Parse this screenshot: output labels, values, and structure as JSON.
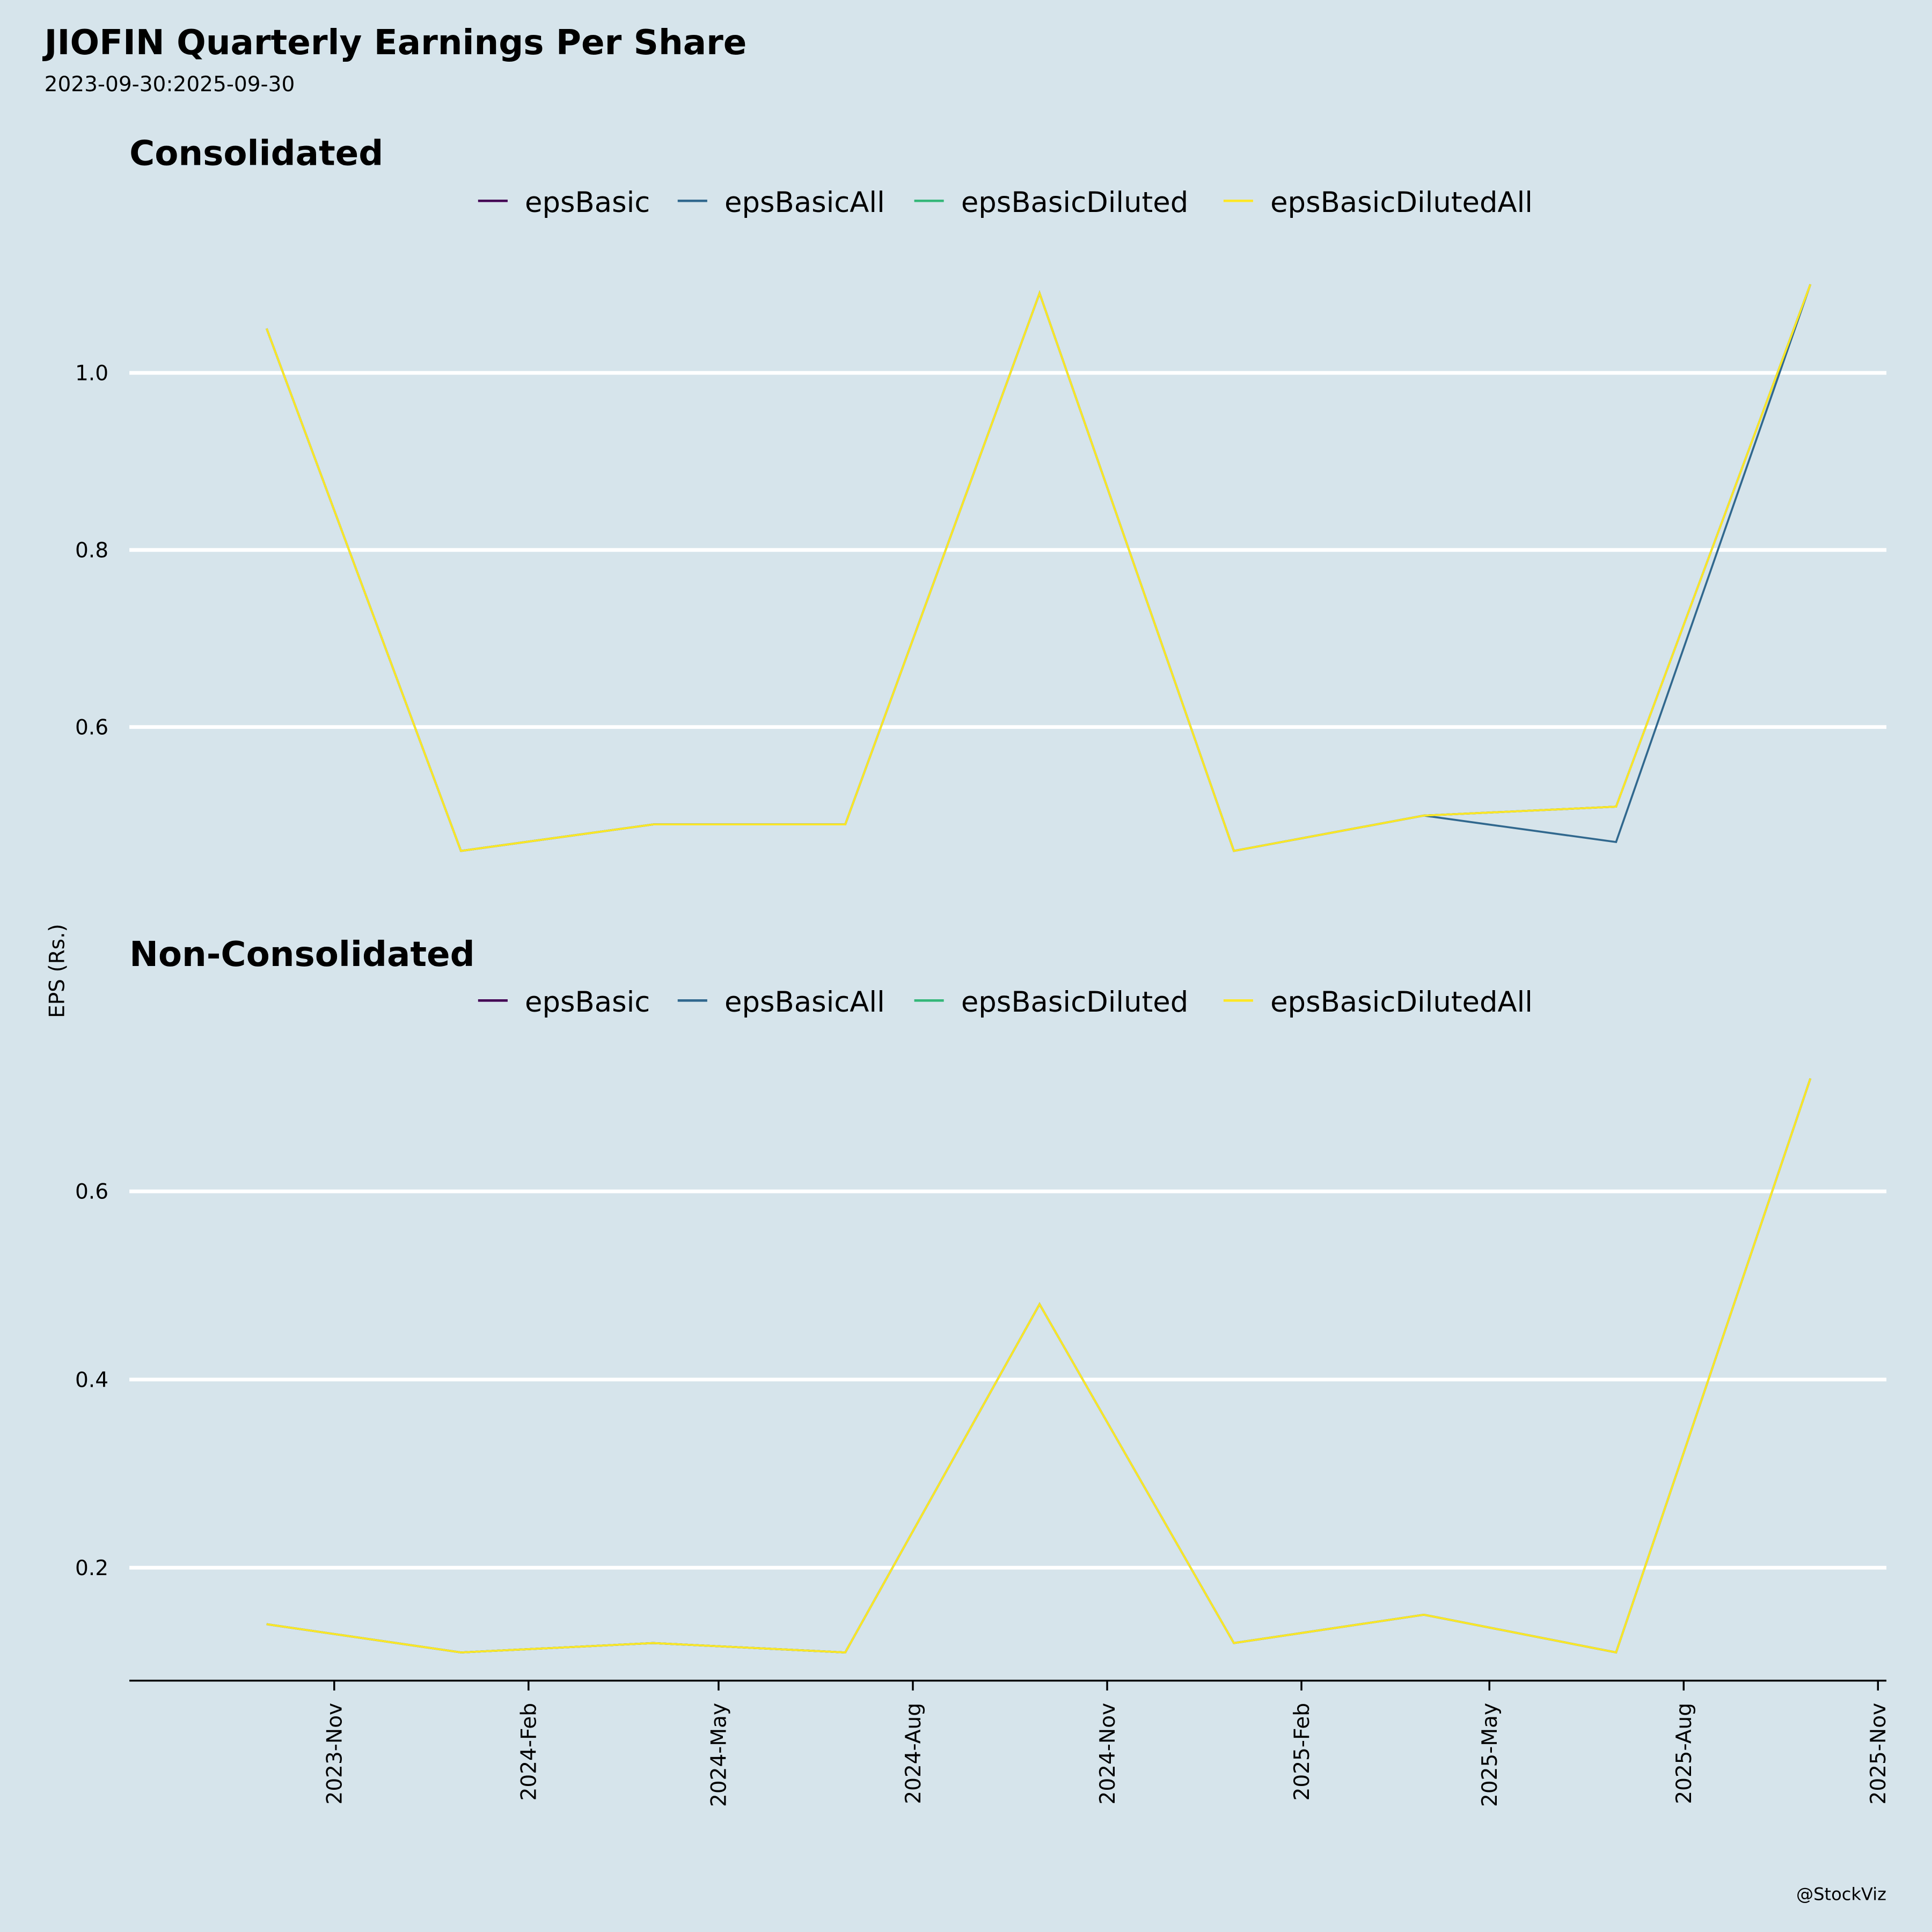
{
  "title": "JIOFIN Quarterly Earnings Per Share",
  "subtitle": "2023-09-30:2025-09-30",
  "ylabel": "EPS (Rs.)",
  "credit": "@StockViz",
  "chart_data": [
    {
      "type": "line",
      "title": "Consolidated",
      "x": [
        "2023-09-30",
        "2023-12-31",
        "2024-03-31",
        "2024-06-30",
        "2024-09-30",
        "2024-12-31",
        "2025-03-31",
        "2025-06-30",
        "2025-09-30"
      ],
      "ylim": [
        0.44,
        1.115
      ],
      "yticks": [
        0.6,
        0.8,
        1.0
      ],
      "ytick_labels": [
        "0.6",
        "0.8",
        "1.0"
      ],
      "series": [
        {
          "name": "epsBasic",
          "color": "#440154",
          "values": [
            1.05,
            0.46,
            0.49,
            0.49,
            1.09,
            0.46,
            0.5,
            0.51,
            1.1
          ]
        },
        {
          "name": "epsBasicAll",
          "color": "#31688e",
          "values": [
            1.05,
            0.46,
            0.49,
            0.49,
            1.09,
            0.46,
            0.5,
            0.47,
            1.1
          ]
        },
        {
          "name": "epsBasicDiluted",
          "color": "#35b779",
          "values": [
            1.05,
            0.46,
            0.49,
            0.49,
            1.09,
            0.46,
            0.5,
            0.51,
            1.1
          ]
        },
        {
          "name": "epsBasicDilutedAll",
          "color": "#fde725",
          "values": [
            1.05,
            0.46,
            0.49,
            0.49,
            1.09,
            0.46,
            0.5,
            0.51,
            1.1
          ]
        }
      ]
    },
    {
      "type": "line",
      "title": "Non-Consolidated",
      "x": [
        "2023-09-30",
        "2023-12-31",
        "2024-03-31",
        "2024-06-30",
        "2024-09-30",
        "2024-12-31",
        "2025-03-31",
        "2025-06-30",
        "2025-09-30"
      ],
      "ylim": [
        0.08,
        0.74
      ],
      "yticks": [
        0.2,
        0.4,
        0.6
      ],
      "ytick_labels": [
        "0.2",
        "0.4",
        "0.6"
      ],
      "series": [
        {
          "name": "epsBasic",
          "color": "#440154",
          "values": [
            0.14,
            0.11,
            0.12,
            0.11,
            0.48,
            0.12,
            0.15,
            0.11,
            0.72
          ]
        },
        {
          "name": "epsBasicAll",
          "color": "#31688e",
          "values": [
            0.14,
            0.11,
            0.12,
            0.11,
            0.48,
            0.12,
            0.15,
            0.11,
            0.72
          ]
        },
        {
          "name": "epsBasicDiluted",
          "color": "#35b779",
          "values": [
            0.14,
            0.11,
            0.12,
            0.11,
            0.48,
            0.12,
            0.15,
            0.11,
            0.72
          ]
        },
        {
          "name": "epsBasicDilutedAll",
          "color": "#fde725",
          "values": [
            0.14,
            0.11,
            0.12,
            0.11,
            0.48,
            0.12,
            0.15,
            0.11,
            0.72
          ]
        }
      ]
    }
  ],
  "xaxis": {
    "range": [
      "2023-07-27",
      "2025-11-05"
    ],
    "ticks": [
      "2023-11-01",
      "2024-02-01",
      "2024-05-01",
      "2024-08-01",
      "2024-11-01",
      "2025-02-01",
      "2025-05-01",
      "2025-08-01",
      "2025-11-01"
    ],
    "tick_labels": [
      "2023-Nov",
      "2024-Feb",
      "2024-May",
      "2024-Aug",
      "2024-Nov",
      "2025-Feb",
      "2025-May",
      "2025-Aug",
      "2025-Nov"
    ]
  }
}
